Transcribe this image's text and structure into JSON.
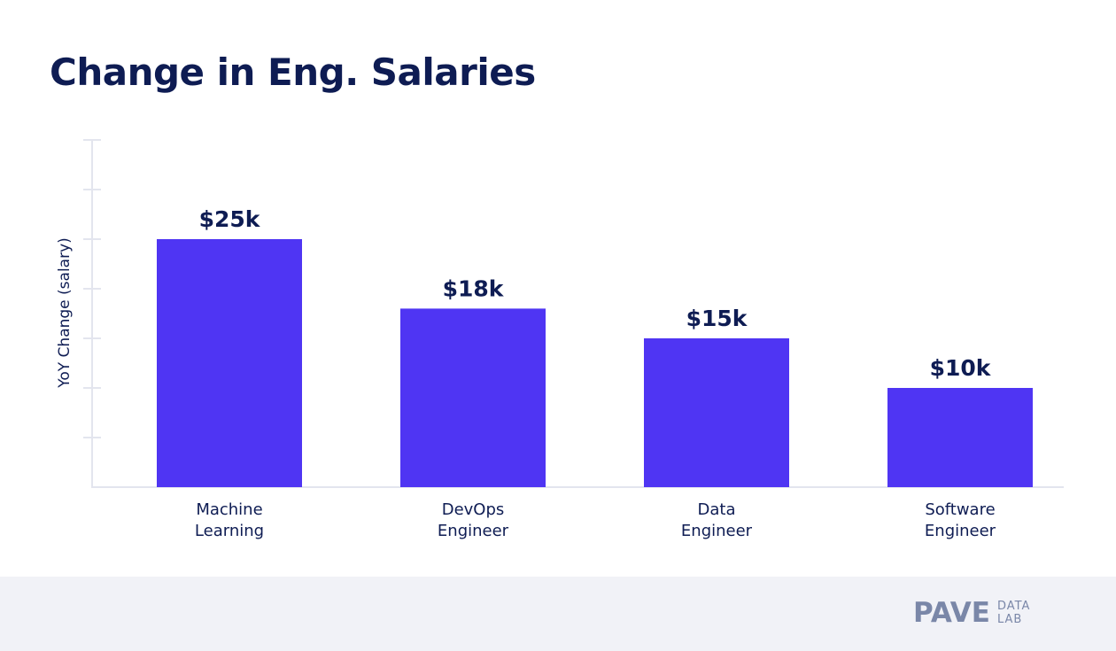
{
  "chart_data": {
    "type": "bar",
    "title": "Change in Eng. Salaries",
    "xlabel": "",
    "ylabel": "YoY Change (salary)",
    "categories": [
      [
        "Machine",
        "Learning"
      ],
      [
        "DevOps",
        "Engineer"
      ],
      [
        "Data",
        "Engineer"
      ],
      [
        "Software",
        "Engineer"
      ]
    ],
    "values": [
      25,
      18,
      15,
      10
    ],
    "value_unit": "$k",
    "data_labels": [
      "$25k",
      "$18k",
      "$15k",
      "$10k"
    ],
    "ylim": [
      0,
      35
    ],
    "ytick_step": 5,
    "ytick_labels_shown": false,
    "grid": false,
    "legend": "none",
    "colors": {
      "bar": "#4f35f3",
      "text": "#0e1c53",
      "axis": "#e3e5ee"
    }
  },
  "footer": {
    "logo_main": "PAVE",
    "logo_sub_1": "DATA",
    "logo_sub_2": "LAB"
  }
}
